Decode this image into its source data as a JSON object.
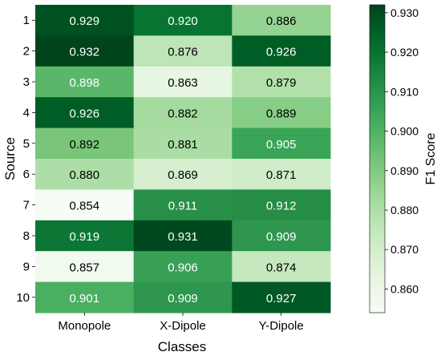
{
  "chart_data": {
    "type": "heatmap",
    "xlabel": "Classes",
    "ylabel": "Source",
    "colorbar_label": "F1 Score",
    "colormap": "Greens",
    "color_low": "#f7fcf5",
    "color_high": "#00441b",
    "vmin": 0.854,
    "vmax": 0.932,
    "colorbar_ticks": [
      "0.860",
      "0.870",
      "0.880",
      "0.890",
      "0.900",
      "0.910",
      "0.920",
      "0.930"
    ],
    "columns": [
      "Monopole",
      "X-Dipole",
      "Y-Dipole"
    ],
    "rows": [
      "1",
      "2",
      "3",
      "4",
      "5",
      "6",
      "7",
      "8",
      "9",
      "10"
    ],
    "values": [
      [
        0.929,
        0.92,
        0.886
      ],
      [
        0.932,
        0.876,
        0.926
      ],
      [
        0.898,
        0.863,
        0.879
      ],
      [
        0.926,
        0.882,
        0.889
      ],
      [
        0.892,
        0.881,
        0.905
      ],
      [
        0.88,
        0.869,
        0.871
      ],
      [
        0.854,
        0.911,
        0.912
      ],
      [
        0.919,
        0.931,
        0.909
      ],
      [
        0.857,
        0.906,
        0.874
      ],
      [
        0.901,
        0.909,
        0.927
      ]
    ],
    "value_labels": [
      [
        "0.929",
        "0.920",
        "0.886"
      ],
      [
        "0.932",
        "0.876",
        "0.926"
      ],
      [
        "0.898",
        "0.863",
        "0.879"
      ],
      [
        "0.926",
        "0.882",
        "0.889"
      ],
      [
        "0.892",
        "0.881",
        "0.905"
      ],
      [
        "0.880",
        "0.869",
        "0.871"
      ],
      [
        "0.854",
        "0.911",
        "0.912"
      ],
      [
        "0.919",
        "0.931",
        "0.909"
      ],
      [
        "0.857",
        "0.906",
        "0.874"
      ],
      [
        "0.901",
        "0.909",
        "0.927"
      ]
    ]
  }
}
